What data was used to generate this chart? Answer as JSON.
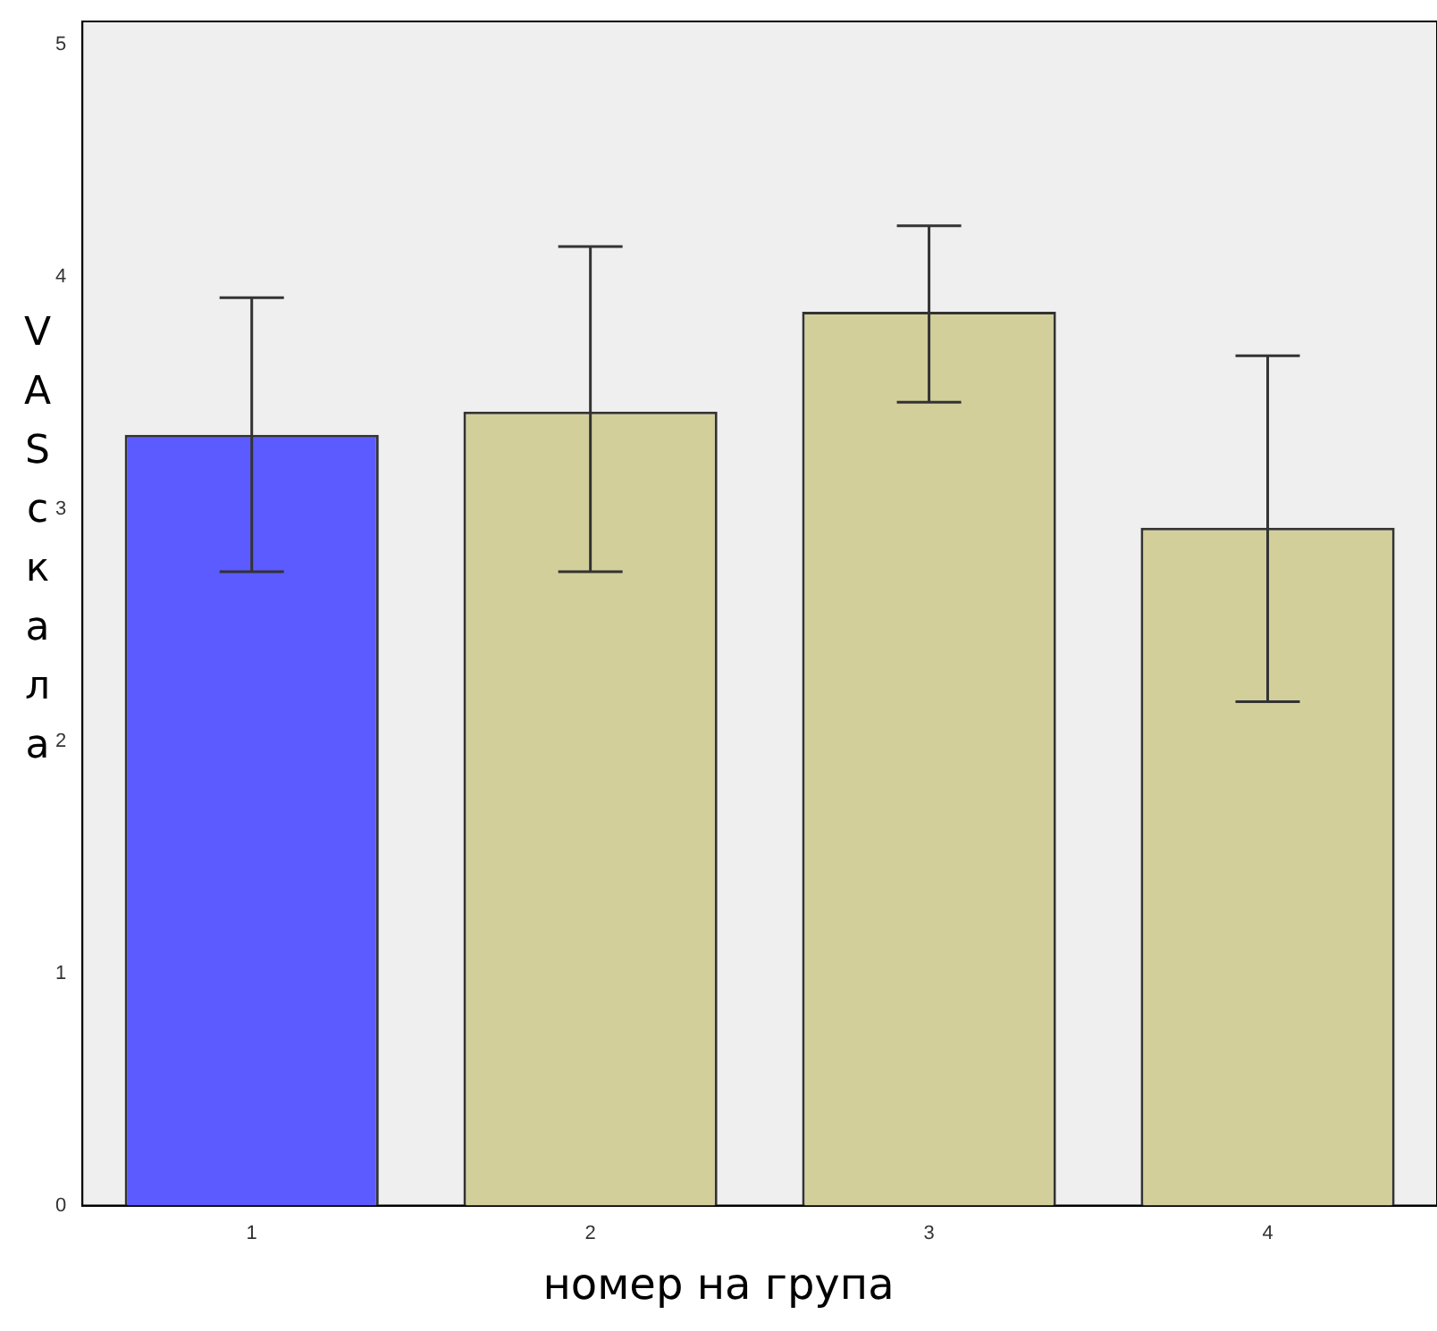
{
  "chart_data": {
    "type": "bar",
    "xlabel": "номер на група",
    "ylabel": "VAS скала",
    "categories": [
      "1",
      "2",
      "3",
      "4"
    ],
    "values": [
      3.32,
      3.42,
      3.85,
      2.92
    ],
    "colors": [
      "#5b5bff",
      "#d3cf9b",
      "#d3cf9b",
      "#d3cf9b"
    ],
    "errors": [
      [
        2.73,
        3.91
      ],
      [
        2.73,
        4.13
      ],
      [
        3.46,
        4.22
      ],
      [
        2.17,
        3.66
      ]
    ],
    "ylim": [
      0,
      5.1
    ],
    "yticks": [
      0,
      1,
      2,
      3,
      4,
      5
    ],
    "grid": false,
    "legend": false
  }
}
